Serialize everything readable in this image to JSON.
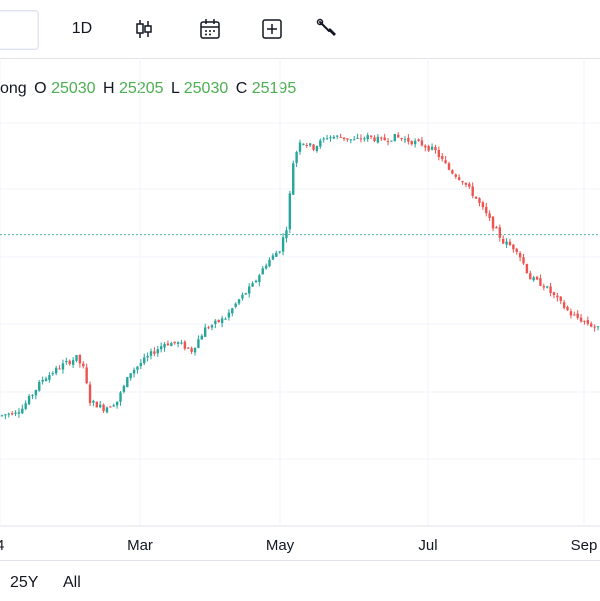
{
  "toolbar": {
    "interval_label": "1D",
    "icons": [
      "candlestick-icon",
      "calendar-icon",
      "plus-box-icon",
      "wrench-icon"
    ]
  },
  "legend": {
    "symbol_fragment": "ong",
    "o_label": "O",
    "o_value": "25030",
    "h_label": "H",
    "h_value": "25205",
    "l_label": "L",
    "l_value": "25030",
    "c_label": "C",
    "c_value": "25195"
  },
  "bottom_bar": {
    "ranges": [
      "25Y",
      "All"
    ]
  },
  "colors": {
    "up": "#26a69a",
    "down": "#ef5350",
    "legend_value": "#4caf50",
    "grid": "#f0f3fa",
    "price_line": "#26a69a"
  },
  "chart_data": {
    "type": "candlestick",
    "x_tick_labels": [
      "4",
      "Mar",
      "May",
      "Jul",
      "Sep"
    ],
    "y_range": [
      0,
      100
    ],
    "y_axis_labels_visible": false,
    "grid": true,
    "current_price_line": 70,
    "note_values": "relative price level, 0 = chart bottom, 100 = chart top (axis not visible)",
    "series": [
      {
        "trend_points": [
          [
            0,
            20
          ],
          [
            6,
            22
          ],
          [
            12,
            30
          ],
          [
            18,
            34
          ],
          [
            22,
            36
          ],
          [
            24,
            33
          ],
          [
            26,
            24
          ],
          [
            30,
            22
          ],
          [
            34,
            24
          ],
          [
            38,
            32
          ],
          [
            44,
            37
          ],
          [
            48,
            40
          ],
          [
            52,
            40
          ],
          [
            56,
            38
          ],
          [
            60,
            44
          ],
          [
            66,
            47
          ],
          [
            70,
            52
          ],
          [
            74,
            56
          ],
          [
            78,
            62
          ],
          [
            82,
            66
          ],
          [
            84,
            72
          ],
          [
            86,
            90
          ],
          [
            88,
            96
          ],
          [
            92,
            94
          ],
          [
            96,
            97
          ],
          [
            100,
            97
          ],
          [
            104,
            96
          ],
          [
            108,
            97
          ],
          [
            112,
            96
          ],
          [
            116,
            97
          ],
          [
            120,
            96
          ],
          [
            124,
            95
          ],
          [
            128,
            93
          ],
          [
            132,
            88
          ],
          [
            136,
            85
          ],
          [
            140,
            80
          ],
          [
            144,
            74
          ],
          [
            148,
            68
          ],
          [
            152,
            66
          ],
          [
            156,
            58
          ],
          [
            160,
            56
          ],
          [
            164,
            52
          ],
          [
            168,
            48
          ],
          [
            172,
            46
          ],
          [
            176,
            44
          ]
        ]
      }
    ]
  }
}
